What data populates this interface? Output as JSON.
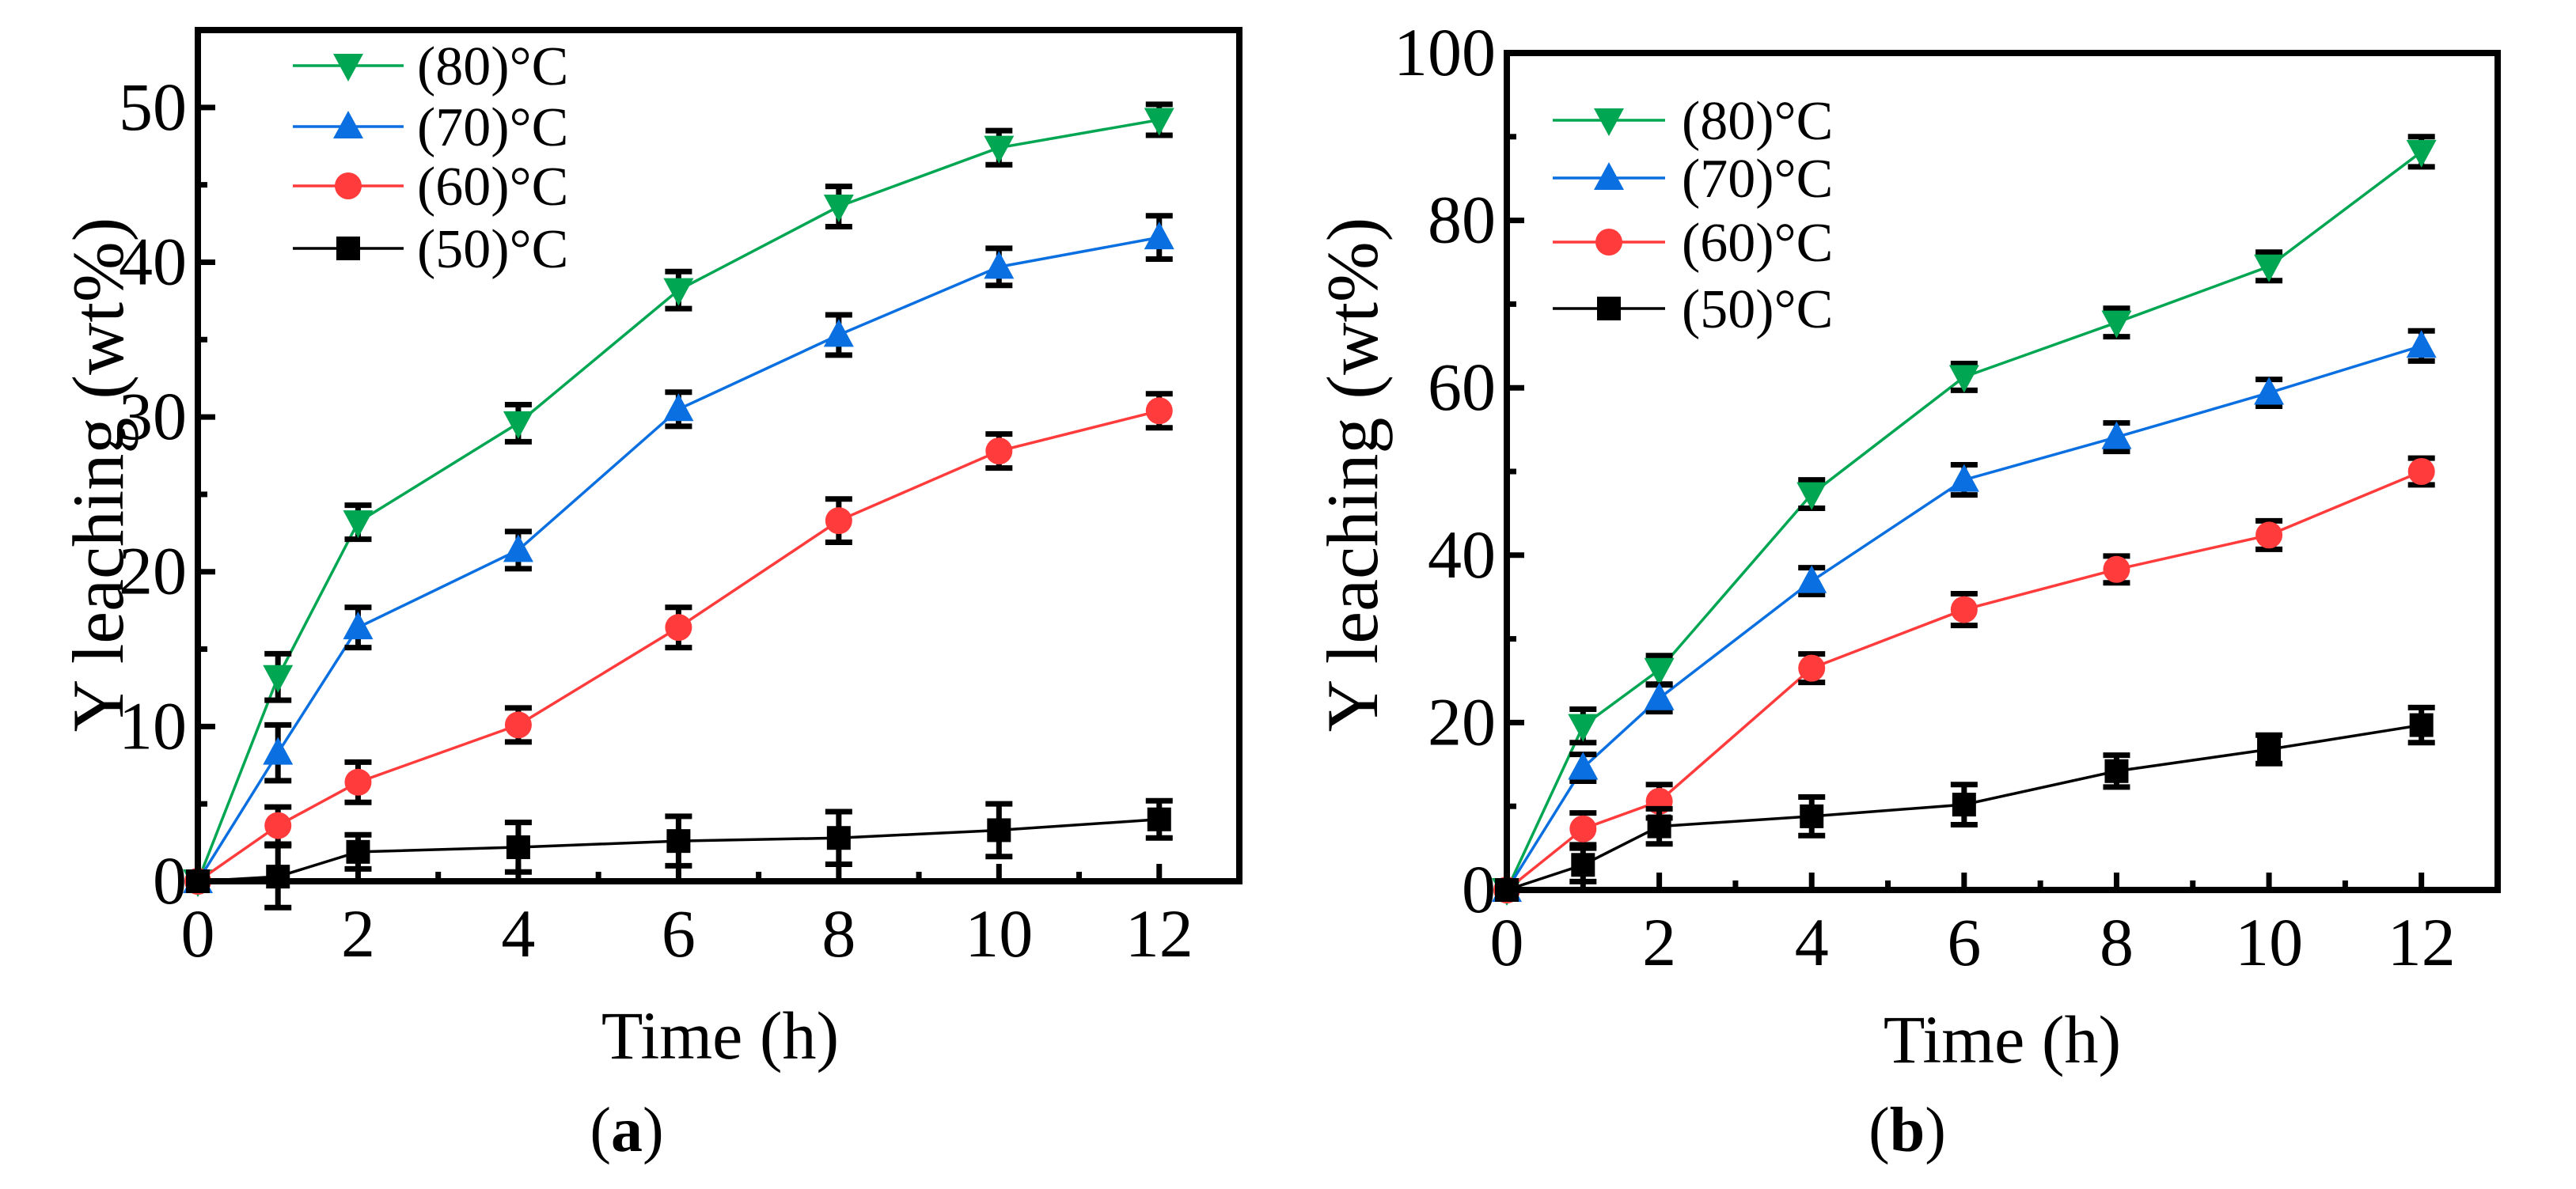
{
  "chart_data": [
    {
      "type": "line",
      "panel_label": "a",
      "xlabel": "Time (h)",
      "ylabel": "Y leaching (wt%)",
      "xlim": [
        0,
        13
      ],
      "ylim": [
        0,
        55
      ],
      "xticks": [
        0,
        2,
        4,
        6,
        8,
        10,
        12
      ],
      "yticks": [
        0,
        10,
        20,
        30,
        40,
        50
      ],
      "legend_position": "top-left",
      "x": [
        0,
        1,
        2,
        4,
        6,
        8,
        10,
        12
      ],
      "series": [
        {
          "name": "(80)°C",
          "marker": "triangle-down",
          "color": "#00a651",
          "values": [
            0,
            13.2,
            23.2,
            29.6,
            38.2,
            43.6,
            47.4,
            49.2
          ],
          "errors": [
            0,
            1.5,
            1.1,
            1.2,
            1.2,
            1.3,
            1.1,
            1.0
          ]
        },
        {
          "name": "(70)°C",
          "marker": "triangle-up",
          "color": "#0a6fe0",
          "values": [
            0,
            8.3,
            16.4,
            21.4,
            30.5,
            35.3,
            39.7,
            41.6
          ],
          "errors": [
            0,
            1.8,
            1.3,
            1.2,
            1.1,
            1.3,
            1.2,
            1.4
          ]
        },
        {
          "name": "(60)°C",
          "marker": "circle",
          "color": "#ff3b3b",
          "values": [
            0,
            3.6,
            6.4,
            10.1,
            16.4,
            23.3,
            27.8,
            30.4
          ],
          "errors": [
            0,
            1.2,
            1.3,
            1.1,
            1.3,
            1.4,
            1.1,
            1.1
          ]
        },
        {
          "name": "(50)°C",
          "marker": "square",
          "color": "#000000",
          "values": [
            0,
            0.3,
            1.9,
            2.2,
            2.6,
            2.8,
            3.3,
            4.0
          ],
          "errors": [
            0,
            2.0,
            1.1,
            1.6,
            1.6,
            1.7,
            1.7,
            1.2
          ]
        }
      ]
    },
    {
      "type": "line",
      "panel_label": "b",
      "xlabel": "Time (h)",
      "ylabel": "Y leaching (wt%)",
      "xlim": [
        0,
        13
      ],
      "ylim": [
        0,
        100
      ],
      "xticks": [
        0,
        2,
        4,
        6,
        8,
        10,
        12
      ],
      "yticks": [
        0,
        20,
        40,
        60,
        80,
        100
      ],
      "legend_position": "top-left",
      "x": [
        0,
        1,
        2,
        4,
        6,
        8,
        10,
        12
      ],
      "series": [
        {
          "name": "(80)°C",
          "marker": "triangle-down",
          "color": "#00a651",
          "values": [
            0,
            19.6,
            26.3,
            47.3,
            61.3,
            67.8,
            74.5,
            88.2
          ],
          "errors": [
            0,
            2.0,
            1.7,
            1.7,
            1.6,
            1.7,
            1.7,
            1.8
          ]
        },
        {
          "name": "(70)°C",
          "marker": "triangle-up",
          "color": "#0a6fe0",
          "values": [
            0,
            14.6,
            22.9,
            36.9,
            49.0,
            54.1,
            59.4,
            65.0
          ],
          "errors": [
            0,
            1.6,
            1.6,
            1.6,
            1.8,
            1.7,
            1.6,
            1.8
          ]
        },
        {
          "name": "(60)°C",
          "marker": "circle",
          "color": "#ff3b3b",
          "values": [
            0,
            7.3,
            10.6,
            26.5,
            33.5,
            38.3,
            42.4,
            50.0
          ],
          "errors": [
            0,
            1.9,
            2.0,
            1.7,
            1.9,
            1.6,
            1.7,
            1.6
          ]
        },
        {
          "name": "(50)°C",
          "marker": "square",
          "color": "#000000",
          "values": [
            0,
            3.0,
            7.6,
            8.8,
            10.2,
            14.2,
            16.8,
            19.7
          ],
          "errors": [
            0,
            2.0,
            2.1,
            2.3,
            2.4,
            1.9,
            1.7,
            2.1
          ]
        }
      ]
    }
  ]
}
